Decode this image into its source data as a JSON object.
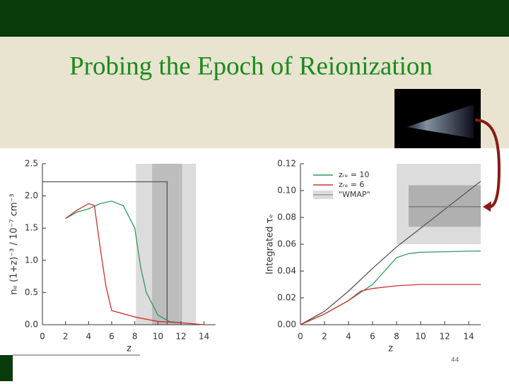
{
  "slide": {
    "title": "Probing the Epoch of Reionization",
    "page_number": "44"
  },
  "chart_data": [
    {
      "type": "line",
      "y_label": "nₑ (1+z)⁻³ / 10⁻⁷ cm⁻³",
      "x_label": "z",
      "xlim": [
        0,
        15
      ],
      "ylim": [
        0,
        2.5
      ],
      "xticks": [
        0,
        2,
        4,
        6,
        8,
        10,
        12,
        14
      ],
      "yticks": [
        {
          "value": 0,
          "label": "0.0"
        },
        {
          "value": 0.5,
          "label": "0.5"
        },
        {
          "value": 1,
          "label": "1.0"
        },
        {
          "value": 1.5,
          "label": "1.5"
        },
        {
          "value": 2,
          "label": "2.0"
        },
        {
          "value": 2.5,
          "label": "2.5"
        }
      ],
      "bands": [
        {
          "x": [
            8.1,
            13.3
          ],
          "color": "#dcdcdc"
        },
        {
          "x": [
            9.5,
            12.1
          ],
          "color": "#bdbdbd"
        }
      ],
      "series": [
        {
          "color": "#555555",
          "x": [
            0,
            10.8,
            10.8
          ],
          "values": [
            2.22,
            2.22,
            0
          ]
        },
        {
          "color": "#2e9a5a",
          "x": [
            2,
            3,
            4,
            5,
            6,
            7,
            8,
            8.5,
            9,
            10,
            11,
            12,
            14
          ],
          "values": [
            1.65,
            1.75,
            1.8,
            1.88,
            1.92,
            1.85,
            1.5,
            0.9,
            0.5,
            0.15,
            0.05,
            0.03,
            0
          ]
        },
        {
          "color": "#d03030",
          "x": [
            2,
            3,
            4,
            4.5,
            5,
            5.5,
            6,
            8,
            10,
            12,
            14
          ],
          "values": [
            1.65,
            1.78,
            1.88,
            1.85,
            1.2,
            0.6,
            0.22,
            0.12,
            0.05,
            0.03,
            0
          ]
        }
      ]
    },
    {
      "type": "line",
      "y_label": "Integrated τₑ",
      "x_label": "z",
      "xlim": [
        0,
        15
      ],
      "ylim": [
        0,
        0.12
      ],
      "xticks": [
        0,
        2,
        4,
        6,
        8,
        10,
        12,
        14
      ],
      "yticks": [
        {
          "value": 0,
          "label": "0.00"
        },
        {
          "value": 0.02,
          "label": "0.02"
        },
        {
          "value": 0.04,
          "label": "0.04"
        },
        {
          "value": 0.06,
          "label": "0.06"
        },
        {
          "value": 0.08,
          "label": "0.08"
        },
        {
          "value": 0.1,
          "label": "0.10"
        },
        {
          "value": 0.12,
          "label": "0.12"
        }
      ],
      "bands": [
        {
          "name": "\"WMAP\"",
          "x": [
            8,
            15
          ],
          "y": [
            0.06,
            0.12
          ],
          "color": "#dcdcdc"
        },
        {
          "x": [
            9,
            15
          ],
          "y": [
            0.073,
            0.104
          ],
          "color": "#b0b0b0"
        }
      ],
      "series": [
        {
          "color": "#555555",
          "x": [
            0,
            2,
            4,
            6,
            8,
            10,
            12,
            14,
            15
          ],
          "values": [
            0,
            0.01,
            0.025,
            0.042,
            0.058,
            0.072,
            0.086,
            0.1,
            0.107
          ]
        },
        {
          "color": "#777777",
          "x": [
            9,
            15
          ],
          "values": [
            0.088,
            0.088
          ]
        },
        {
          "name": "zᵣₑ = 10",
          "color": "#2e9a5a",
          "x": [
            0,
            2,
            4,
            5,
            6,
            7,
            8,
            9,
            10,
            15
          ],
          "values": [
            0,
            0.008,
            0.018,
            0.024,
            0.03,
            0.04,
            0.05,
            0.053,
            0.054,
            0.055
          ]
        },
        {
          "name": "zᵣₑ = 6",
          "color": "#d03030",
          "x": [
            0,
            2,
            4,
            5,
            6,
            8,
            10,
            15
          ],
          "values": [
            0,
            0.008,
            0.018,
            0.025,
            0.027,
            0.029,
            0.03,
            0.03
          ]
        }
      ]
    }
  ]
}
